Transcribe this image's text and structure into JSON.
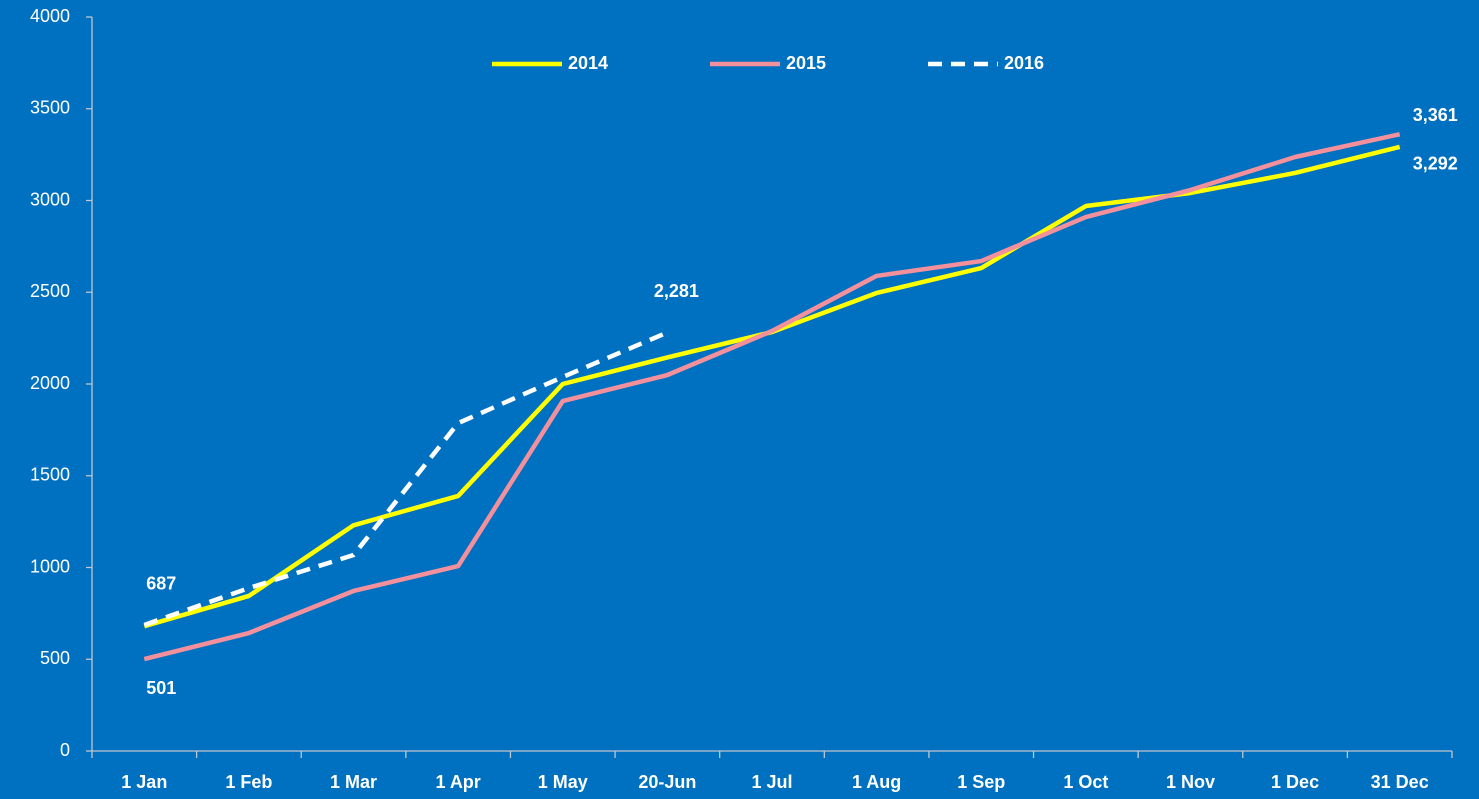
{
  "chart_data": {
    "type": "line",
    "categories": [
      "1 Jan",
      "1 Feb",
      "1 Mar",
      "1 Apr",
      "1 May",
      "20-Jun",
      "1 Jul",
      "1 Aug",
      "1 Sep",
      "1 Oct",
      "1 Nov",
      "1 Dec",
      "31 Dec"
    ],
    "series": [
      {
        "name": "2014",
        "color": "#ffff00",
        "line_style": "solid",
        "values": [
          680,
          845,
          1230,
          1390,
          2000,
          2145,
          2283,
          2496,
          2632,
          2970,
          3041,
          3150,
          3292
        ],
        "value_labels": [
          null,
          null,
          null,
          null,
          null,
          null,
          null,
          null,
          null,
          null,
          null,
          null,
          "3,292"
        ]
      },
      {
        "name": "2015",
        "color": "#f4909c",
        "line_style": "solid",
        "values": [
          501,
          643,
          872,
          1008,
          1907,
          2049,
          2289,
          2589,
          2670,
          2910,
          3057,
          3237,
          3361
        ],
        "value_labels": [
          "501",
          null,
          null,
          null,
          null,
          null,
          null,
          null,
          null,
          null,
          null,
          null,
          "3,361"
        ]
      },
      {
        "name": "2016",
        "color": "#ffffff",
        "line_style": "dashed",
        "values": [
          687,
          888,
          1068,
          1787,
          2038,
          2281,
          null,
          null,
          null,
          null,
          null,
          null,
          null
        ],
        "value_labels": [
          "687",
          null,
          null,
          null,
          null,
          "2,281",
          null,
          null,
          null,
          null,
          null,
          null,
          null
        ]
      }
    ],
    "ylim": [
      0,
      4000
    ],
    "yticks": [
      0,
      500,
      1000,
      1500,
      2000,
      2500,
      3000,
      3500,
      4000
    ],
    "grid": false,
    "legend": "top"
  }
}
